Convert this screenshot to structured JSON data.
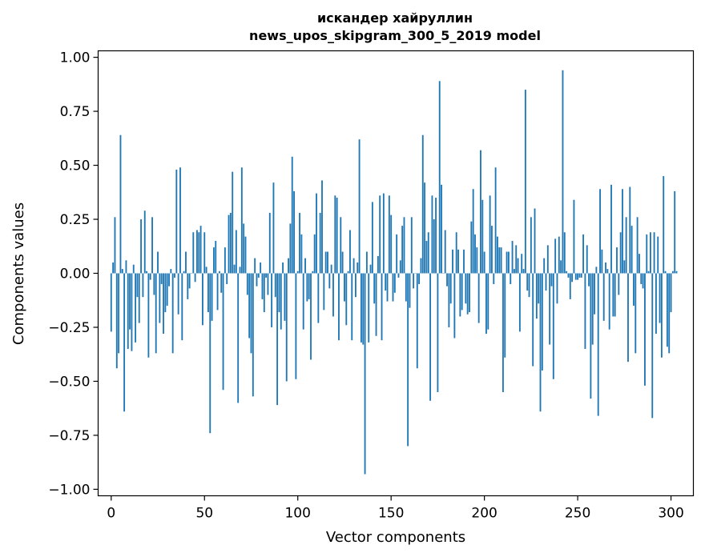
{
  "chart_data": {
    "type": "bar",
    "title_line1": "искандер хайруллин",
    "title_line2": "news_upos_skipgram_300_5_2019 model",
    "xlabel": "Vector components",
    "ylabel": "Components values",
    "xlim": [
      -7,
      312
    ],
    "ylim": [
      -1.03,
      1.03
    ],
    "xticks": [
      0,
      50,
      100,
      150,
      200,
      250,
      300
    ],
    "xtick_labels": [
      "0",
      "50",
      "100",
      "150",
      "200",
      "250",
      "300"
    ],
    "yticks": [
      1.0,
      0.75,
      0.5,
      0.25,
      0.0,
      -0.25,
      -0.5,
      -0.75,
      -1.0
    ],
    "ytick_labels": [
      "1.00",
      "0.75",
      "0.50",
      "0.25",
      "0.00",
      "−0.25",
      "−0.50",
      "−0.75",
      "−1.00"
    ],
    "bar_color": "#1f77b4",
    "grid": false,
    "series": [
      {
        "x_start": 0,
        "values": [
          -0.27,
          0.05,
          0.26,
          -0.44,
          -0.37,
          0.64,
          0.02,
          -0.64,
          0.06,
          -0.35,
          -0.26,
          -0.36,
          0.04,
          -0.32,
          -0.11,
          -0.23,
          0.25,
          -0.11,
          0.29,
          0.01,
          -0.39,
          -0.03,
          0.26,
          -0.1,
          -0.37,
          0.1,
          -0.23,
          -0.05,
          -0.28,
          -0.18,
          -0.15,
          -0.06,
          0.02,
          -0.37,
          -0.02,
          0.48,
          -0.19,
          0.49,
          -0.31,
          0.01,
          0.1,
          -0.12,
          -0.07,
          0.0,
          0.19,
          -0.04,
          0.2,
          0.19,
          0.22,
          -0.24,
          0.19,
          0.03,
          -0.18,
          -0.74,
          -0.22,
          0.12,
          0.15,
          -0.17,
          0.01,
          -0.09,
          -0.54,
          0.12,
          -0.05,
          0.27,
          0.28,
          0.47,
          0.04,
          0.2,
          -0.6,
          0.03,
          0.49,
          0.23,
          0.17,
          -0.1,
          -0.3,
          -0.37,
          -0.57,
          0.07,
          -0.06,
          -0.02,
          0.05,
          -0.12,
          -0.18,
          -0.02,
          -0.1,
          0.28,
          -0.25,
          0.42,
          -0.11,
          -0.61,
          -0.18,
          -0.26,
          0.05,
          -0.22,
          -0.5,
          0.07,
          0.23,
          0.54,
          0.38,
          -0.49,
          0.01,
          0.28,
          0.18,
          -0.26,
          0.07,
          -0.13,
          -0.12,
          -0.4,
          0.01,
          0.18,
          0.37,
          -0.23,
          0.28,
          0.43,
          -0.17,
          0.1,
          0.1,
          -0.07,
          0.04,
          -0.2,
          0.36,
          0.35,
          -0.31,
          0.26,
          0.1,
          -0.13,
          -0.24,
          0.01,
          0.2,
          -0.31,
          0.07,
          -0.11,
          0.05,
          0.62,
          -0.32,
          -0.33,
          -0.93,
          0.1,
          -0.32,
          0.04,
          0.33,
          -0.14,
          -0.29,
          0.08,
          0.36,
          -0.31,
          0.37,
          -0.08,
          -0.13,
          0.36,
          0.27,
          -0.13,
          -0.09,
          0.18,
          -0.02,
          0.06,
          0.22,
          0.26,
          -0.13,
          -0.8,
          -0.16,
          0.26,
          -0.07,
          0.0,
          -0.44,
          -0.05,
          0.07,
          0.64,
          0.42,
          0.15,
          0.19,
          -0.59,
          0.36,
          0.25,
          0.35,
          -0.55,
          0.89,
          0.41,
          0.0,
          0.2,
          -0.06,
          -0.25,
          -0.14,
          0.11,
          -0.3,
          0.19,
          0.11,
          -0.2,
          -0.17,
          0.11,
          -0.14,
          -0.19,
          -0.18,
          0.24,
          0.39,
          0.18,
          0.12,
          -0.23,
          0.57,
          0.34,
          0.1,
          -0.28,
          -0.26,
          0.36,
          0.22,
          -0.05,
          0.49,
          0.17,
          0.12,
          0.12,
          -0.55,
          -0.39,
          0.1,
          0.1,
          -0.05,
          0.15,
          0.02,
          0.13,
          0.07,
          -0.27,
          0.09,
          0.02,
          0.85,
          -0.08,
          -0.11,
          0.26,
          -0.43,
          0.3,
          -0.21,
          -0.14,
          -0.64,
          -0.45,
          0.07,
          -0.08,
          0.13,
          -0.33,
          -0.06,
          -0.49,
          0.16,
          -0.14,
          0.17,
          0.06,
          0.94,
          0.19,
          0.01,
          -0.02,
          -0.12,
          -0.04,
          0.34,
          -0.03,
          -0.03,
          -0.02,
          -0.02,
          0.18,
          -0.35,
          0.13,
          -0.06,
          -0.58,
          -0.33,
          -0.19,
          0.03,
          -0.66,
          0.39,
          0.11,
          -0.22,
          0.05,
          0.02,
          -0.26,
          0.41,
          -0.2,
          -0.2,
          0.12,
          -0.1,
          0.19,
          0.39,
          0.06,
          0.26,
          -0.41,
          0.4,
          0.22,
          -0.15,
          -0.37,
          0.26,
          0.09,
          -0.05,
          -0.07,
          -0.52,
          0.18,
          0.01,
          0.19,
          -0.67,
          0.19,
          -0.28,
          0.17,
          -0.23,
          -0.39,
          0.45,
          0.01,
          -0.34,
          -0.37,
          -0.18,
          0.01,
          0.38,
          0.01
        ]
      }
    ]
  }
}
